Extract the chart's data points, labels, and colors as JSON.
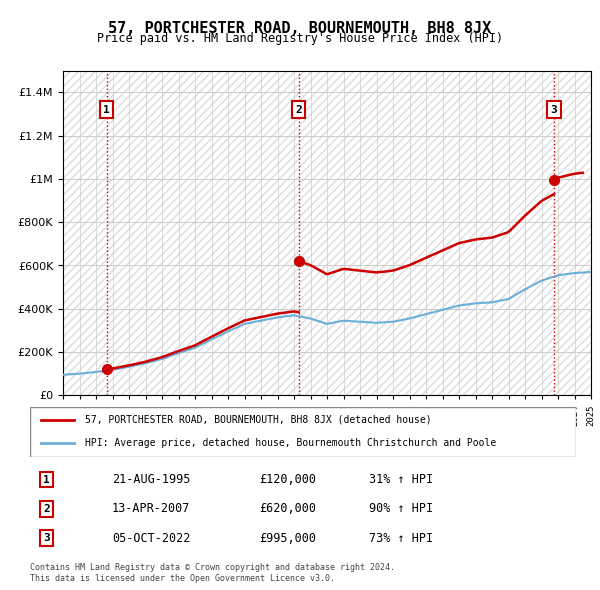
{
  "title": "57, PORTCHESTER ROAD, BOURNEMOUTH, BH8 8JX",
  "subtitle": "Price paid vs. HM Land Registry's House Price Index (HPI)",
  "ylabel_ticks": [
    "£0",
    "£200K",
    "£400K",
    "£600K",
    "£800K",
    "£1M",
    "£1.2M",
    "£1.4M"
  ],
  "ytick_values": [
    0,
    200000,
    400000,
    600000,
    800000,
    1000000,
    1200000,
    1400000
  ],
  "ylim": [
    0,
    1500000
  ],
  "hpi_color": "#6baed6",
  "price_color": "#cc0000",
  "background_color": "#ffffff",
  "hatch_color": "#d0d0d0",
  "grid_color": "#cccccc",
  "transactions": [
    {
      "date": 1995.644,
      "price": 120000,
      "label": "1"
    },
    {
      "date": 2007.281,
      "price": 620000,
      "label": "2"
    },
    {
      "date": 2022.756,
      "price": 995000,
      "label": "3"
    }
  ],
  "table_rows": [
    {
      "num": "1",
      "date": "21-AUG-1995",
      "price": "£120,000",
      "hpi": "31% ↑ HPI"
    },
    {
      "num": "2",
      "date": "13-APR-2007",
      "price": "£620,000",
      "hpi": "90% ↑ HPI"
    },
    {
      "num": "3",
      "date": "05-OCT-2022",
      "price": "£995,000",
      "hpi": "73% ↑ HPI"
    }
  ],
  "legend_line1": "57, PORTCHESTER ROAD, BOURNEMOUTH, BH8 8JX (detached house)",
  "legend_line2": "HPI: Average price, detached house, Bournemouth Christchurch and Poole",
  "footer": "Contains HM Land Registry data © Crown copyright and database right 2024.\nThis data is licensed under the Open Government Licence v3.0.",
  "xmin": 1993,
  "xmax": 2025
}
